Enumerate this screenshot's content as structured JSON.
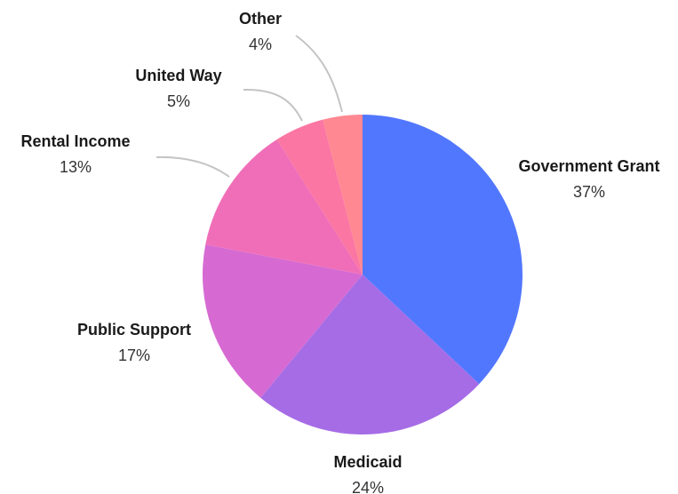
{
  "chart_data": {
    "type": "pie",
    "title": "",
    "slices": [
      {
        "label": "Government Grant",
        "percent_label": "37%",
        "value": 37,
        "color": "#5277ff"
      },
      {
        "label": "Medicaid",
        "percent_label": "24%",
        "value": 24,
        "color": "#a66ce6"
      },
      {
        "label": "Public Support",
        "percent_label": "17%",
        "value": 17,
        "color": "#d66ad2"
      },
      {
        "label": "Rental Income",
        "percent_label": "13%",
        "value": 13,
        "color": "#f06eb8"
      },
      {
        "label": "United Way",
        "percent_label": "5%",
        "value": 5,
        "color": "#fb76a3"
      },
      {
        "label": "Other",
        "percent_label": "4%",
        "value": 4,
        "color": "#ff8892"
      }
    ],
    "start_angle": "12 o'clock",
    "direction": "clockwise",
    "legend": "none"
  }
}
